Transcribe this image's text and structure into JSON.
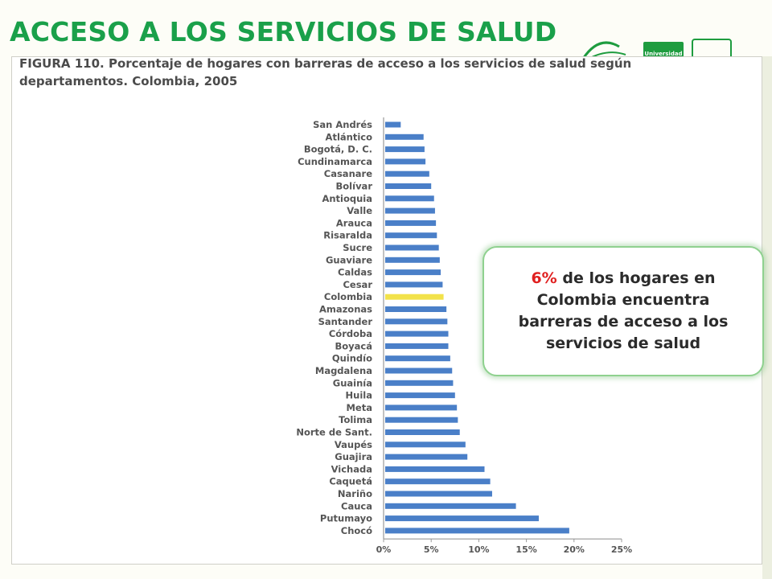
{
  "slide": {
    "title": "ACCESO A LOS SERVICIOS DE SALUD",
    "logo_text": "Universidad"
  },
  "figure": {
    "label": "FIGURA 110.",
    "caption": "Porcentaje de hogares con barreras de acceso a los servicios de salud según departamentos. Colombia, 2005"
  },
  "callout": {
    "highlight": "6%",
    "text": "de los hogares en Colombia encuentra barreras de acceso a los servicios de salud"
  },
  "colors": {
    "title": "#1aa04a",
    "bar": "#4a7fc8",
    "highlight_bar": "#f2e24a",
    "highlight_text": "#e02020"
  },
  "chart_data": {
    "type": "bar",
    "orientation": "horizontal",
    "categories": [
      "San Andrés",
      "Atlántico",
      "Bogotá, D. C.",
      "Cundinamarca",
      "Casanare",
      "Bolívar",
      "Antioquia",
      "Valle",
      "Arauca",
      "Risaralda",
      "Sucre",
      "Guaviare",
      "Caldas",
      "Cesar",
      "Colombia",
      "Amazonas",
      "Santander",
      "Córdoba",
      "Boyacá",
      "Quindío",
      "Magdalena",
      "Guainía",
      "Huila",
      "Meta",
      "Tolima",
      "Norte de Sant.",
      "Vaupés",
      "Guajira",
      "Vichada",
      "Caquetá",
      "Nariño",
      "Cauca",
      "Putumayo",
      "Chocó"
    ],
    "values": [
      1.8,
      4.2,
      4.3,
      4.4,
      4.8,
      5.0,
      5.3,
      5.4,
      5.5,
      5.6,
      5.8,
      5.9,
      6.0,
      6.2,
      6.3,
      6.6,
      6.7,
      6.8,
      6.8,
      7.0,
      7.2,
      7.3,
      7.5,
      7.7,
      7.8,
      8.0,
      8.6,
      8.8,
      10.6,
      11.2,
      11.4,
      13.9,
      16.3,
      19.5
    ],
    "highlight_category": "Colombia",
    "xlim": [
      0,
      25
    ],
    "xticks": [
      0,
      5,
      10,
      15,
      20,
      25
    ],
    "xtick_labels": [
      "0%",
      "5%",
      "10%",
      "15%",
      "20%",
      "25%"
    ],
    "grid": false,
    "title": "",
    "xlabel": "",
    "ylabel": ""
  }
}
